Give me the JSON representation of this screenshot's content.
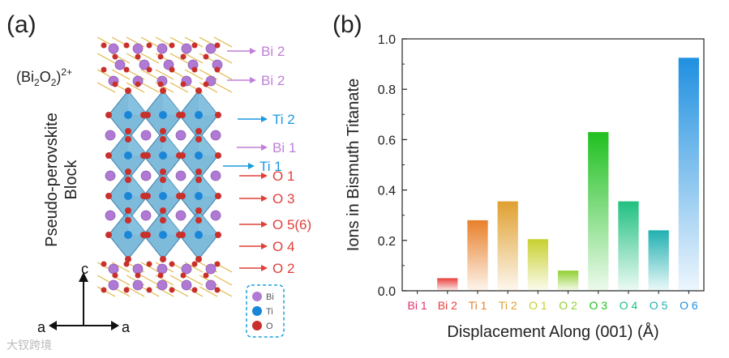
{
  "panel_a": {
    "label": "(a)",
    "formula": {
      "base": "(Bi",
      "sub1": "2",
      "mid": "O",
      "sub2": "2",
      "end": ")",
      "sup": "2+"
    },
    "block_label_line1": "Pseudo-perovskite",
    "block_label_line2": "Block",
    "sites": [
      {
        "text": "Bi 2",
        "color": "#c07fd8"
      },
      {
        "text": "Bi 2",
        "color": "#c07fd8"
      },
      {
        "text": "Ti 2",
        "color": "#1a9be0"
      },
      {
        "text": "Bi 1",
        "color": "#c07fd8"
      },
      {
        "text": "Ti 1",
        "color": "#1a9be0"
      },
      {
        "text": "O 1",
        "color": "#e0403a"
      },
      {
        "text": "O 3",
        "color": "#e0403a"
      },
      {
        "text": "O 5(6)",
        "color": "#e0403a"
      },
      {
        "text": "O 4",
        "color": "#e0403a"
      },
      {
        "text": "O 2",
        "color": "#e0403a"
      }
    ],
    "axes": {
      "up": "c",
      "left": "a",
      "right": "a"
    },
    "legend": [
      {
        "label": "Bi",
        "color": "#b07ad4"
      },
      {
        "label": "Ti",
        "color": "#1a86d8"
      },
      {
        "label": "O",
        "color": "#c9302c"
      }
    ]
  },
  "panel_b": {
    "label": "(b)"
  },
  "watermark": "大钗跨境",
  "chart_data": {
    "type": "bar",
    "ylabel": "Ions in Bismuth Titanate",
    "xlabel": "Displacement Along (001) (Å)",
    "ylim": [
      0,
      1.0
    ],
    "yticks": [
      "0.0",
      "0.2",
      "0.4",
      "0.6",
      "0.8",
      "1.0"
    ],
    "categories": [
      "Bi 1",
      "Bi 2",
      "Ti 1",
      "Ti 2",
      "O 1",
      "O 2",
      "O 3",
      "O 4",
      "O 5",
      "O 6"
    ],
    "values": [
      0.0,
      0.05,
      0.28,
      0.355,
      0.205,
      0.08,
      0.63,
      0.355,
      0.24,
      0.925
    ],
    "colors": [
      "#e0306a",
      "#e8403c",
      "#e8802a",
      "#e0a030",
      "#c8d030",
      "#90d030",
      "#20c020",
      "#20c080",
      "#20b0b0",
      "#2090e0"
    ]
  }
}
